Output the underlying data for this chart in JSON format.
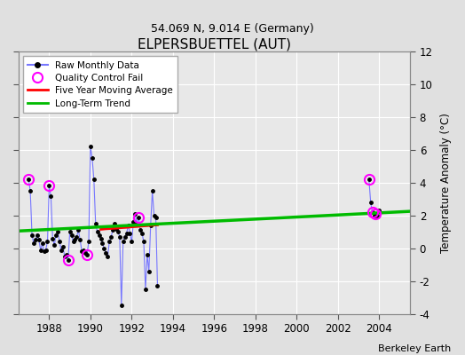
{
  "title": "ELPERSBUETTEL (AUT)",
  "subtitle": "54.069 N, 9.014 E (Germany)",
  "ylabel": "Temperature Anomaly (°C)",
  "credit": "Berkeley Earth",
  "ylim": [
    -4,
    12
  ],
  "yticks": [
    -4,
    -2,
    0,
    2,
    4,
    6,
    8,
    10,
    12
  ],
  "xlim": [
    1986.5,
    2005.5
  ],
  "xticks": [
    1988,
    1990,
    1992,
    1994,
    1996,
    1998,
    2000,
    2002,
    2004
  ],
  "bg_color": "#e0e0e0",
  "plot_bg": "#e8e8e8",
  "grid_color": "#ffffff",
  "raw_line_color": "#7777ff",
  "raw_dot_color": "#000000",
  "ma_color": "#ff0000",
  "trend_color": "#00bb00",
  "qc_color": "#ff00ff",
  "trend_x": [
    1986.5,
    2005.5
  ],
  "trend_y": [
    1.05,
    2.25
  ],
  "ma_x": [
    1990.5,
    1990.75,
    1991.0,
    1991.25,
    1991.5,
    1991.75,
    1992.0,
    1992.25,
    1992.5,
    1992.75,
    1993.0,
    1993.25
  ],
  "ma_y": [
    1.15,
    1.18,
    1.2,
    1.22,
    1.25,
    1.27,
    1.3,
    1.32,
    1.35,
    1.37,
    1.4,
    1.42
  ],
  "months_x": [
    1987.0,
    1987.083,
    1987.167,
    1987.25,
    1987.333,
    1987.417,
    1987.5,
    1987.583,
    1987.667,
    1987.75,
    1987.833,
    1987.917,
    1988.0,
    1988.083,
    1988.167,
    1988.25,
    1988.333,
    1988.417,
    1988.5,
    1988.583,
    1988.667,
    1988.75,
    1988.833,
    1988.917,
    1989.0,
    1989.083,
    1989.167,
    1989.25,
    1989.333,
    1989.417,
    1989.5,
    1989.583,
    1989.667,
    1989.75,
    1989.833,
    1989.917,
    1990.0,
    1990.083,
    1990.167,
    1990.25,
    1990.333,
    1990.417,
    1990.5,
    1990.583,
    1990.667,
    1990.75,
    1990.833,
    1990.917,
    1991.0,
    1991.083,
    1991.167,
    1991.25,
    1991.333,
    1991.417,
    1991.5,
    1991.583,
    1991.667,
    1991.75,
    1991.833,
    1991.917,
    1992.0,
    1992.083,
    1992.167,
    1992.25,
    1992.333,
    1992.417,
    1992.5,
    1992.583,
    1992.667,
    1992.75,
    1992.833,
    1992.917,
    1993.0,
    1993.083,
    1993.167,
    1993.25
  ],
  "months_y": [
    4.2,
    3.5,
    0.8,
    0.3,
    0.5,
    0.8,
    0.5,
    -0.1,
    0.3,
    -0.2,
    -0.1,
    0.4,
    3.8,
    3.2,
    0.6,
    0.2,
    0.8,
    1.0,
    0.4,
    -0.1,
    0.1,
    -0.5,
    -0.4,
    -0.7,
    1.0,
    0.8,
    0.4,
    0.5,
    0.7,
    1.1,
    0.5,
    -0.2,
    -0.1,
    -0.3,
    -0.4,
    0.4,
    6.2,
    5.5,
    4.2,
    1.5,
    1.0,
    0.8,
    0.6,
    0.3,
    0.0,
    -0.3,
    -0.5,
    0.4,
    0.7,
    1.1,
    1.5,
    1.2,
    1.0,
    0.7,
    -3.5,
    0.4,
    0.7,
    0.9,
    1.4,
    0.9,
    0.4,
    1.6,
    2.1,
    1.5,
    1.9,
    1.1,
    0.9,
    0.4,
    -2.5,
    -0.4,
    -1.4,
    1.4,
    3.5,
    2.0,
    1.9,
    -2.3
  ],
  "late_x": [
    2003.5,
    2003.583,
    2003.667,
    2003.75,
    2003.833,
    2003.917,
    2004.0
  ],
  "late_y": [
    4.2,
    2.8,
    2.2,
    2.0,
    2.1,
    2.0,
    2.3
  ],
  "qc_x": [
    1987.0,
    1988.0,
    1988.917,
    1989.833,
    1992.333,
    2003.5,
    2003.667,
    2003.833
  ],
  "qc_y": [
    4.2,
    3.8,
    -0.7,
    -0.4,
    1.9,
    4.2,
    2.2,
    2.1
  ]
}
